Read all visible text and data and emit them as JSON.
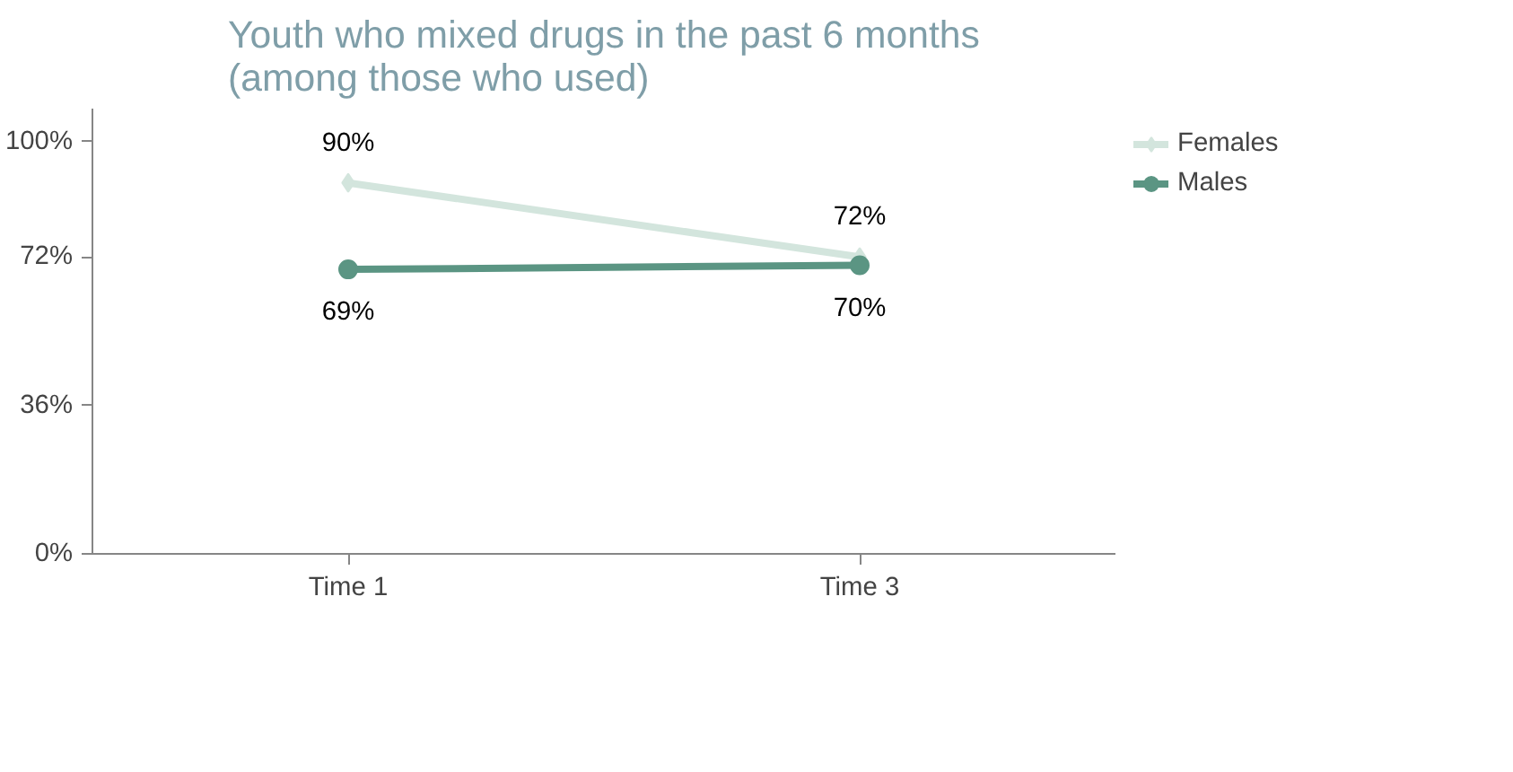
{
  "chart_data": {
    "type": "line",
    "title": "Youth who mixed drugs in the past 6 months\n(among those who used)",
    "categories": [
      "Time 1",
      "Time 3"
    ],
    "series": [
      {
        "name": "Females",
        "color": "#d3e5dd",
        "values": [
          90,
          72
        ],
        "marker": "diamond",
        "value_labels": [
          "90%",
          "72%"
        ]
      },
      {
        "name": "Males",
        "color": "#5b9583",
        "values": [
          69,
          70
        ],
        "marker": "circle",
        "value_labels": [
          "69%",
          "70%"
        ]
      }
    ],
    "ylim": [
      0,
      108
    ],
    "yticks": [
      {
        "value": 0,
        "label": "0%"
      },
      {
        "value": 36,
        "label": "36%"
      },
      {
        "value": 72,
        "label": "72%"
      },
      {
        "value": 100,
        "label": "100%"
      }
    ],
    "grid": false,
    "legend": "right"
  }
}
